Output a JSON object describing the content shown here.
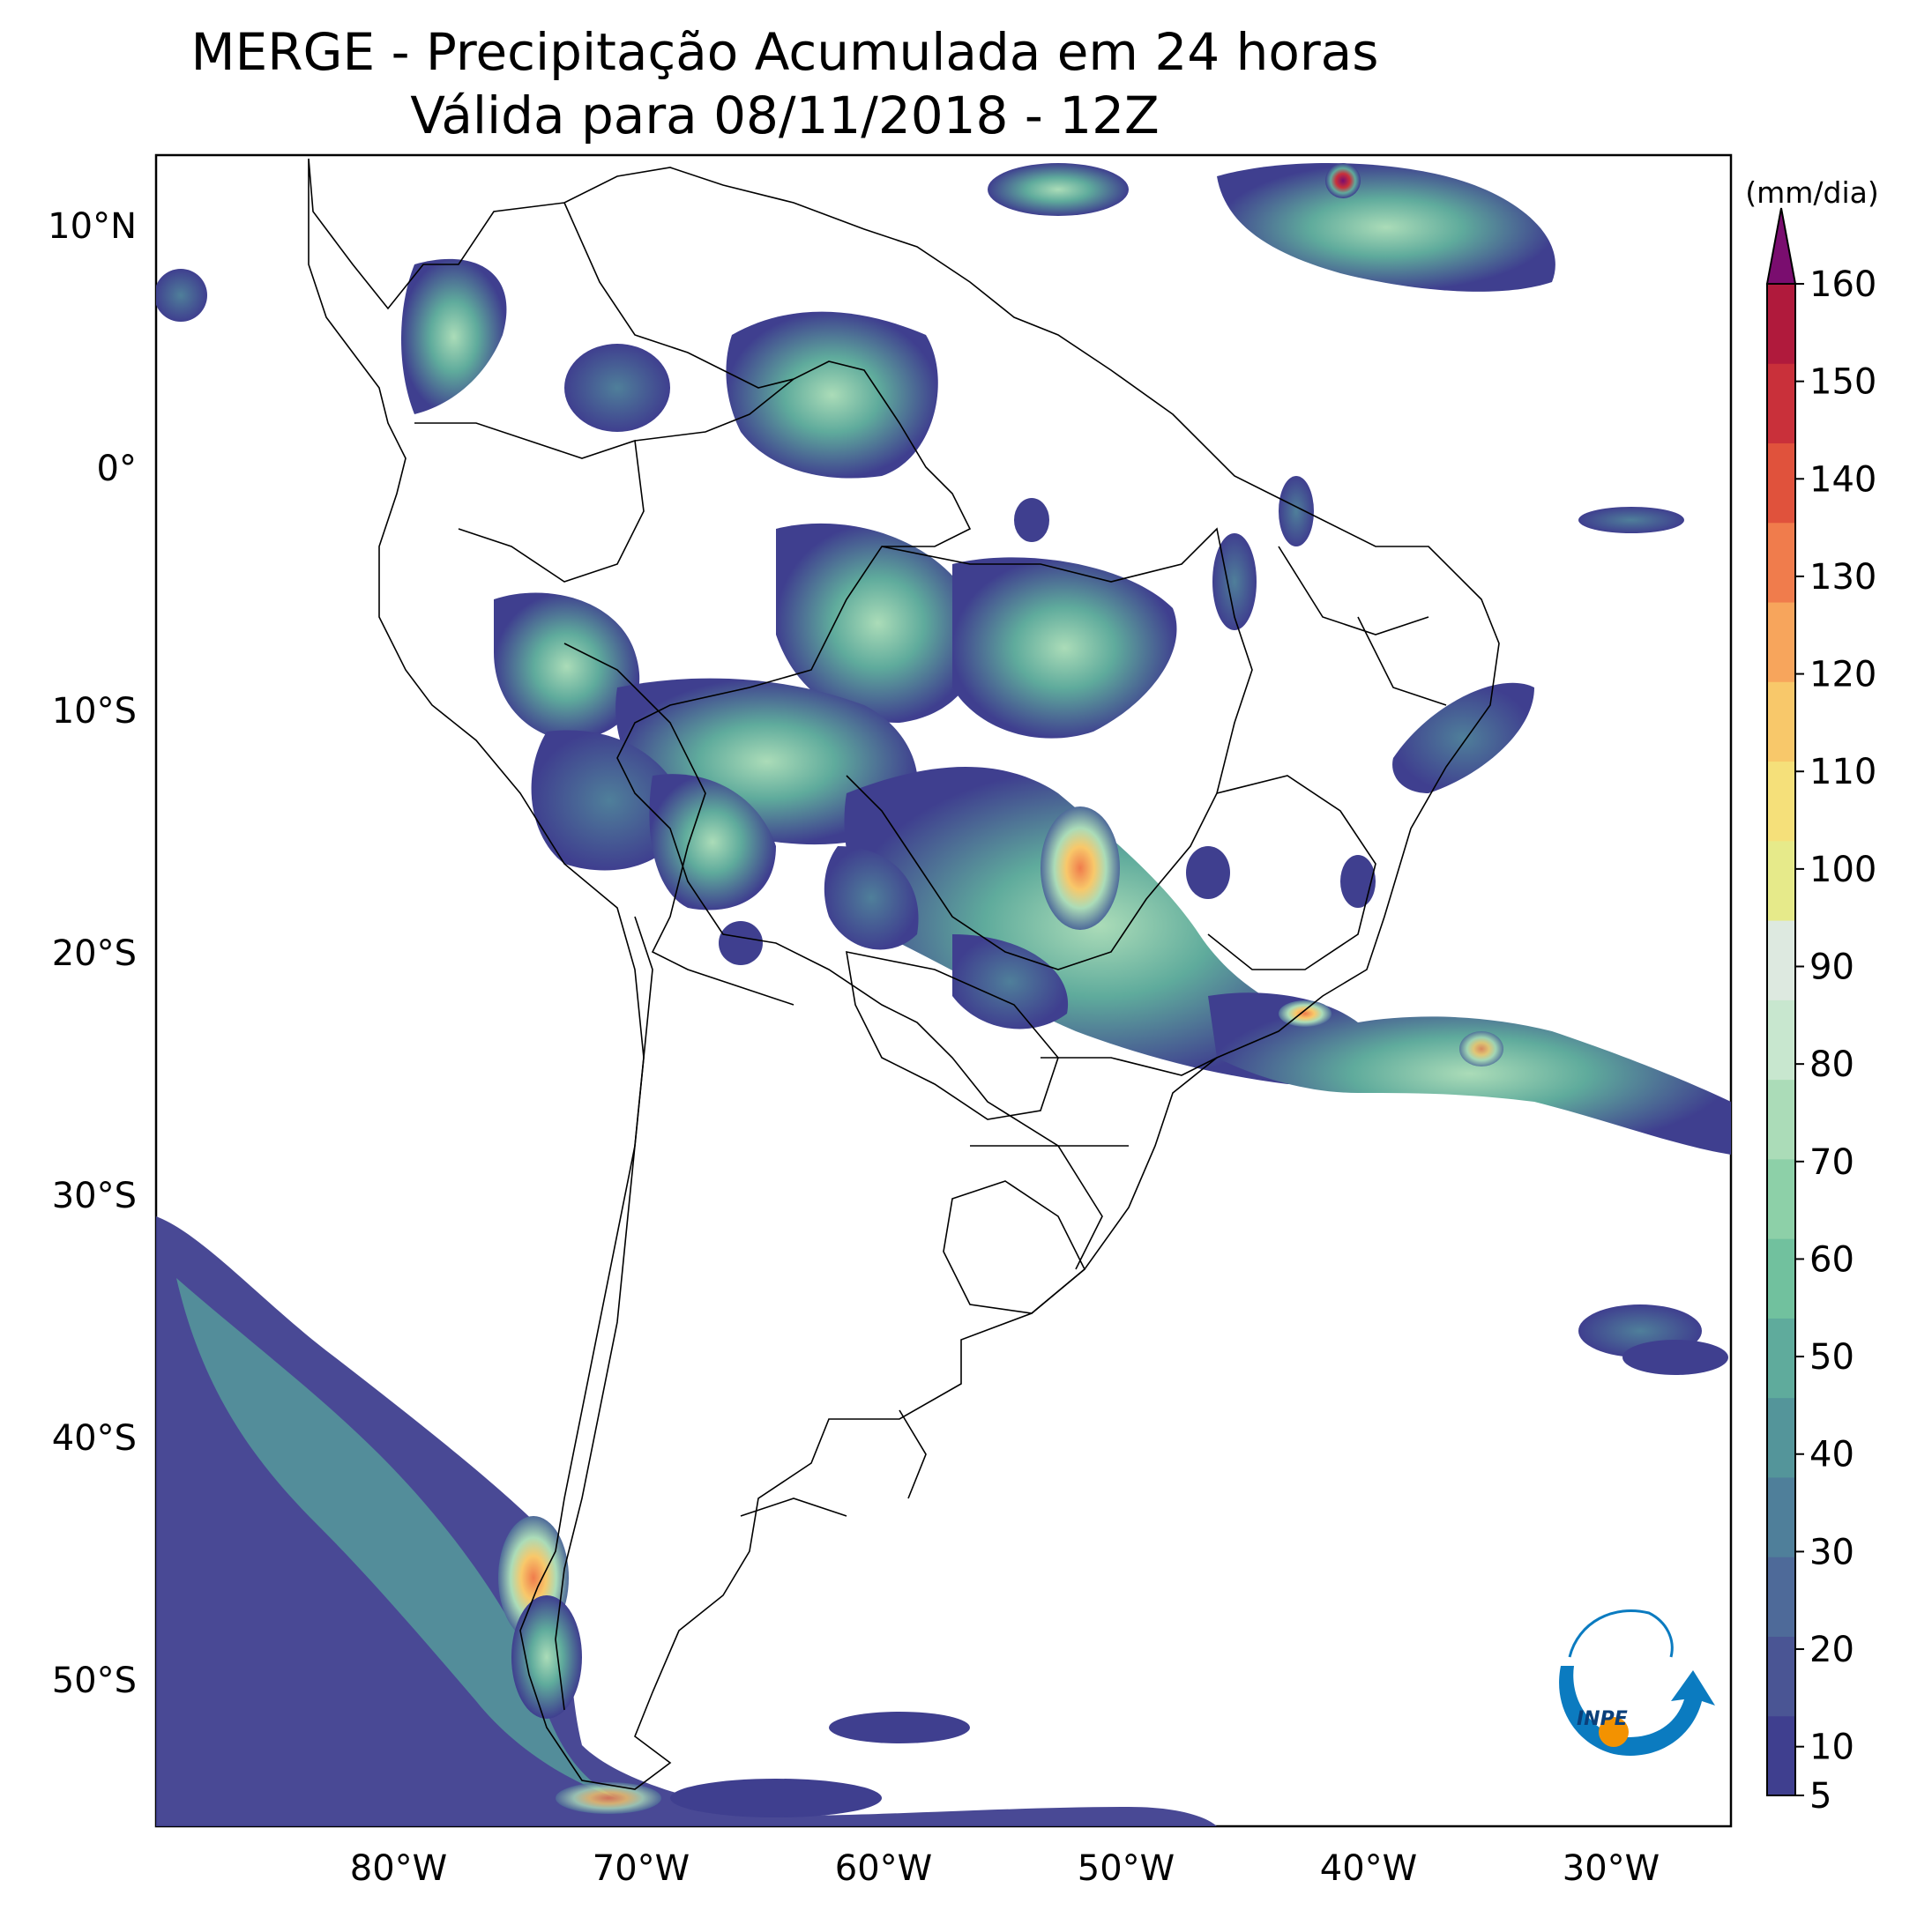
{
  "title": "MERGE - Precipitação Acumulada em 24 horas",
  "subtitle": "Válida para 08/11/2018 - 12Z",
  "axes": {
    "lat_labels": [
      "10°N",
      "0°",
      "10°S",
      "20°S",
      "30°S",
      "40°S",
      "50°S"
    ],
    "lon_labels": [
      "80°W",
      "70°W",
      "60°W",
      "50°W",
      "40°W",
      "30°W"
    ]
  },
  "colorbar": {
    "unit": "(mm/dia)",
    "tick_labels": [
      "5",
      "10",
      "20",
      "30",
      "40",
      "50",
      "60",
      "70",
      "80",
      "90",
      "100",
      "110",
      "120",
      "130",
      "140",
      "150",
      "160"
    ],
    "colors": [
      "#3f3f8f",
      "#4a5594",
      "#4e6a99",
      "#4f7f9a",
      "#54959a",
      "#5fab9c",
      "#71c19e",
      "#8dd0a8",
      "#abdcb8",
      "#c8e7cf",
      "#dde9e0",
      "#e6ea8a",
      "#f5e07a",
      "#f8c86a",
      "#f7a55c",
      "#f07c4c",
      "#e0523c",
      "#c9303a",
      "#b01a3c",
      "#7a0d6f"
    ]
  },
  "logo": {
    "text": "INPE"
  },
  "colors": {
    "ocean": "#ffffff",
    "land_border": "#000000",
    "precip_low": "#3f3f8f",
    "precip_mid": "#71c19e",
    "precip_high": "#f8c86a",
    "precip_max": "#7a0d6f",
    "logo_blue": "#0b7bc0",
    "logo_orange": "#f39200"
  }
}
